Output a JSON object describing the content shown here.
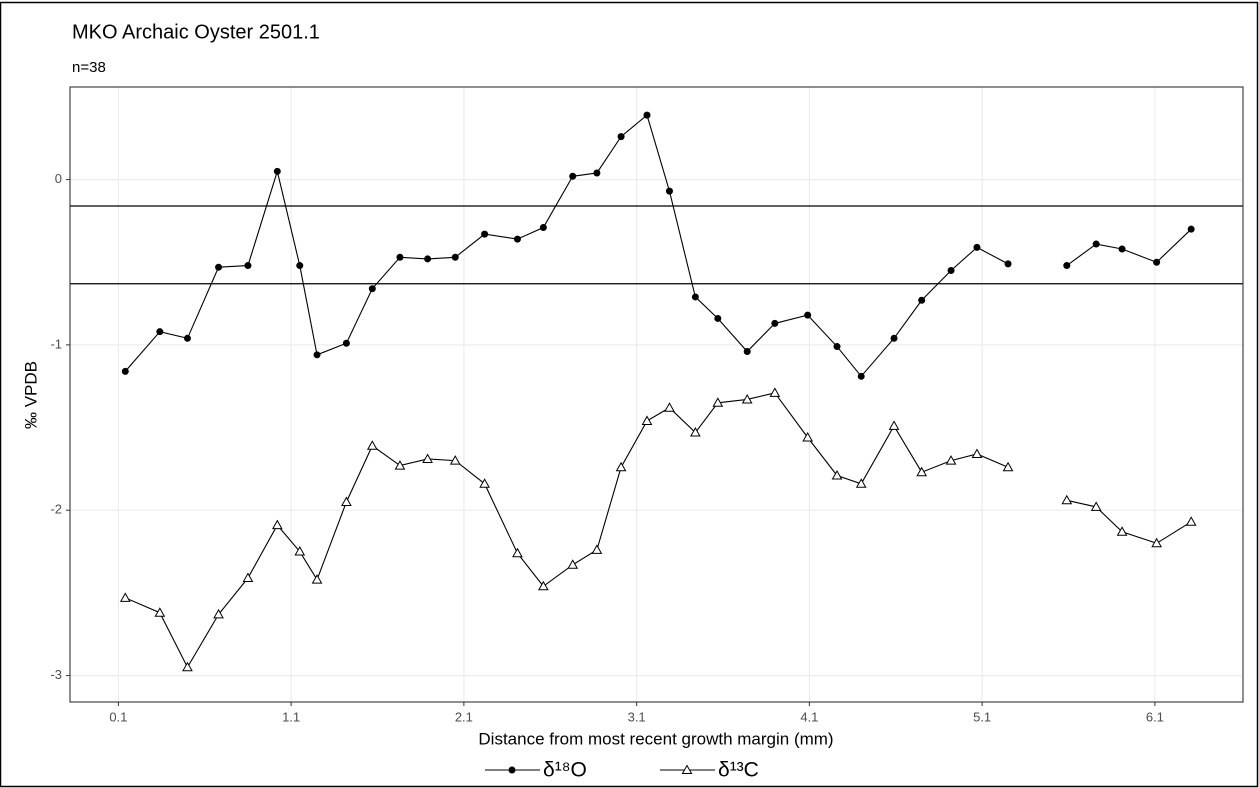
{
  "chart_data": {
    "type": "line",
    "title": "MKO Archaic Oyster 2501.1",
    "subtitle": "n=38",
    "x_label": "Distance from most recent growth margin (mm)",
    "y_label": "‰ VPDB",
    "x": [
      0.14,
      0.34,
      0.5,
      0.68,
      0.85,
      1.02,
      1.15,
      1.25,
      1.42,
      1.57,
      1.73,
      1.89,
      2.05,
      2.22,
      2.41,
      2.56,
      2.73,
      2.87,
      3.01,
      3.16,
      3.29,
      3.44,
      3.57,
      3.74,
      3.9,
      4.09,
      4.26,
      4.4,
      4.59,
      4.75,
      4.92,
      5.07,
      5.25,
      5.42,
      5.59,
      5.76,
      5.91,
      6.11,
      6.31
    ],
    "series": [
      {
        "name": "δ¹⁸O",
        "color": "#000000",
        "marker": "circle",
        "values": [
          -1.16,
          -0.92,
          -0.96,
          -0.53,
          -0.52,
          0.05,
          -0.52,
          -1.06,
          -0.99,
          -0.66,
          -0.47,
          -0.48,
          -0.47,
          -0.33,
          -0.36,
          -0.29,
          0.02,
          0.04,
          0.26,
          0.39,
          -0.07,
          -0.71,
          -0.84,
          -1.04,
          -0.87,
          -0.82,
          -1.01,
          -1.19,
          -0.96,
          -0.73,
          -0.55,
          -0.41,
          -0.51,
          null,
          -0.52,
          -0.39,
          -0.42,
          -0.5,
          -0.3
        ]
      },
      {
        "name": "δ¹³C",
        "color": "#000000",
        "marker": "triangle",
        "values": [
          -2.53,
          -2.62,
          -2.95,
          -2.63,
          -2.41,
          -2.09,
          -2.25,
          -2.42,
          -1.95,
          -1.61,
          -1.73,
          -1.69,
          -1.7,
          -1.84,
          -2.26,
          -2.46,
          -2.33,
          -2.24,
          -1.74,
          -1.46,
          -1.38,
          -1.53,
          -1.35,
          -1.33,
          -1.29,
          -1.56,
          -1.79,
          -1.84,
          -1.49,
          -1.77,
          -1.7,
          -1.66,
          -1.74,
          null,
          -1.94,
          -1.98,
          -2.13,
          -2.2,
          -2.07
        ]
      }
    ],
    "hlines": [
      -0.16,
      -0.63
    ],
    "xlim": [
      -0.18,
      6.61
    ],
    "ylim": [
      -3.16,
      0.56
    ],
    "xticks": [
      0.1,
      1.1,
      2.1,
      3.1,
      4.1,
      5.1,
      6.1
    ],
    "yticks": [
      -3,
      -2,
      -1,
      0
    ],
    "grid": true,
    "legend": "bottom"
  }
}
